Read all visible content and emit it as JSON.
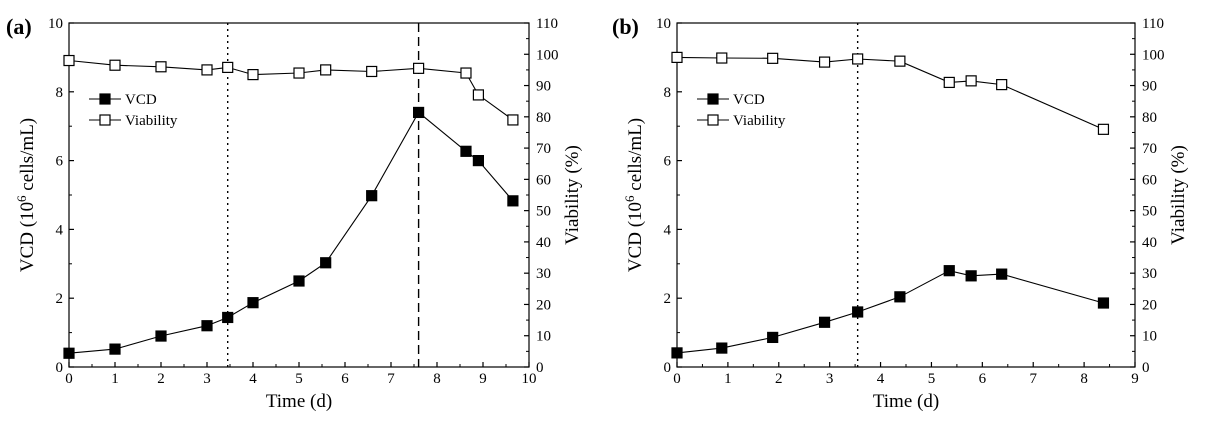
{
  "chart_data": [
    {
      "panel_label": "(a)",
      "type": "line",
      "xlabel": "Time (d)",
      "ylabel_left": {
        "base": "VCD (10",
        "sup": "6",
        "tail": " cells/mL)"
      },
      "ylabel_right": "Viability (%)",
      "xlim": [
        0,
        10
      ],
      "xticks": [
        0,
        1,
        2,
        3,
        4,
        5,
        6,
        7,
        8,
        9,
        10
      ],
      "ylim_left": [
        0,
        10
      ],
      "yticks_left": [
        0,
        2,
        4,
        6,
        8,
        10
      ],
      "ylim_right": [
        0,
        110
      ],
      "yticks_right": [
        0,
        10,
        20,
        30,
        40,
        50,
        60,
        70,
        80,
        90,
        100,
        110
      ],
      "legend": {
        "placement": "upper-left",
        "entries": [
          "VCD",
          "Viability"
        ]
      },
      "grid": false,
      "vlines": [
        {
          "x": 3.45,
          "style": "dotted"
        },
        {
          "x": 7.6,
          "style": "dashed"
        }
      ],
      "series": [
        {
          "name": "VCD",
          "axis": "left",
          "marker": "filled-square",
          "x": [
            0,
            1,
            2,
            3,
            3.45,
            4,
            5,
            5.58,
            6.58,
            7.6,
            8.63,
            8.9,
            9.65
          ],
          "y": [
            0.4,
            0.52,
            0.9,
            1.2,
            1.44,
            1.87,
            2.5,
            3.03,
            4.98,
            7.4,
            6.27,
            6.0,
            4.83
          ]
        },
        {
          "name": "Viability",
          "axis": "right",
          "marker": "open-square",
          "x": [
            0,
            1,
            2,
            3,
            3.45,
            4,
            5,
            5.58,
            6.58,
            7.6,
            8.63,
            8.9,
            9.65
          ],
          "y": [
            98.0,
            96.5,
            96.0,
            95.0,
            95.8,
            93.5,
            94.0,
            95.0,
            94.5,
            95.5,
            94.0,
            87.0,
            79.0
          ]
        }
      ]
    },
    {
      "panel_label": "(b)",
      "type": "line",
      "xlabel": "Time (d)",
      "ylabel_left": {
        "base": "VCD (10",
        "sup": "6",
        "tail": " cells/mL)"
      },
      "ylabel_right": "Viability (%)",
      "xlim": [
        0,
        9
      ],
      "xticks": [
        0,
        1,
        2,
        3,
        4,
        5,
        6,
        7,
        8,
        9
      ],
      "ylim_left": [
        0,
        10
      ],
      "yticks_left": [
        0,
        2,
        4,
        6,
        8,
        10
      ],
      "ylim_right": [
        0,
        110
      ],
      "yticks_right": [
        0,
        10,
        20,
        30,
        40,
        50,
        60,
        70,
        80,
        90,
        100,
        110
      ],
      "legend": {
        "placement": "upper-left",
        "entries": [
          "VCD",
          "Viability"
        ]
      },
      "grid": false,
      "vlines": [
        {
          "x": 3.55,
          "style": "dotted"
        }
      ],
      "series": [
        {
          "name": "VCD",
          "axis": "left",
          "marker": "filled-square",
          "x": [
            0,
            0.88,
            1.88,
            2.9,
            3.55,
            4.38,
            5.35,
            5.78,
            6.38,
            8.38
          ],
          "y": [
            0.41,
            0.55,
            0.86,
            1.3,
            1.6,
            2.04,
            2.8,
            2.65,
            2.7,
            1.86
          ]
        },
        {
          "name": "Viability",
          "axis": "right",
          "marker": "open-square",
          "x": [
            0,
            0.88,
            1.88,
            2.9,
            3.55,
            4.38,
            5.35,
            5.78,
            6.38,
            8.38
          ],
          "y": [
            99.0,
            98.8,
            98.7,
            97.5,
            98.5,
            97.8,
            91.0,
            91.5,
            90.3,
            76.0
          ]
        }
      ]
    }
  ]
}
